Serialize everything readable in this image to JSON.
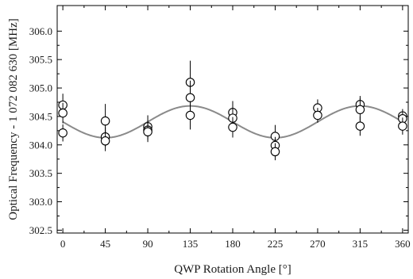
{
  "chart_data": {
    "type": "scatter",
    "xlabel": "QWP Rotation Angle [°]",
    "ylabel": "Optical Frequency - 1 072 082 630 [MHz]",
    "xlim": [
      -6,
      366
    ],
    "ylim": [
      302.45,
      306.45
    ],
    "xticks": [
      0,
      45,
      90,
      135,
      180,
      225,
      270,
      315,
      360
    ],
    "yticks": [
      302.5,
      303.0,
      303.5,
      304.0,
      304.5,
      305.0,
      305.5,
      306.0
    ],
    "ytick_labels": [
      "302.5",
      "303.0",
      "303.5",
      "304.0",
      "304.5",
      "305.0",
      "305.5",
      "306.0"
    ],
    "xtick_labels": [
      "0",
      "45",
      "90",
      "135",
      "180",
      "225",
      "270",
      "315",
      "360"
    ],
    "grid": false,
    "series": [
      {
        "type": "scatter",
        "marker": "open-circle",
        "color": "#000000",
        "points": [
          {
            "x": 0,
            "y": 304.7,
            "err": 0.2
          },
          {
            "x": 0,
            "y": 304.56,
            "err": 0.18
          },
          {
            "x": 0,
            "y": 304.21,
            "err": 0.15
          },
          {
            "x": 45,
            "y": 304.42,
            "err": 0.3
          },
          {
            "x": 45,
            "y": 304.14,
            "err": 0.17
          },
          {
            "x": 45,
            "y": 304.07,
            "err": 0.18
          },
          {
            "x": 90,
            "y": 304.32,
            "err": 0.2
          },
          {
            "x": 90,
            "y": 304.26,
            "err": 0.17
          },
          {
            "x": 90,
            "y": 304.23,
            "err": 0.18
          },
          {
            "x": 135,
            "y": 305.1,
            "err": 0.38
          },
          {
            "x": 135,
            "y": 304.83,
            "err": 0.3
          },
          {
            "x": 135,
            "y": 304.52,
            "err": 0.25
          },
          {
            "x": 180,
            "y": 304.57,
            "err": 0.2
          },
          {
            "x": 180,
            "y": 304.47,
            "err": 0.22
          },
          {
            "x": 180,
            "y": 304.31,
            "err": 0.18
          },
          {
            "x": 225,
            "y": 304.15,
            "err": 0.2
          },
          {
            "x": 225,
            "y": 303.99,
            "err": 0.15
          },
          {
            "x": 225,
            "y": 303.88,
            "err": 0.15
          },
          {
            "x": 270,
            "y": 304.65,
            "err": 0.15
          },
          {
            "x": 270,
            "y": 304.52,
            "err": 0.13
          },
          {
            "x": 315,
            "y": 304.71,
            "err": 0.15
          },
          {
            "x": 315,
            "y": 304.62,
            "err": 0.2
          },
          {
            "x": 315,
            "y": 304.33,
            "err": 0.17
          },
          {
            "x": 360,
            "y": 304.51,
            "err": 0.12
          },
          {
            "x": 360,
            "y": 304.46,
            "err": 0.12
          },
          {
            "x": 360,
            "y": 304.33,
            "err": 0.15
          }
        ]
      },
      {
        "type": "line",
        "color": "#8a8a8a",
        "fit": {
          "offset": 304.405,
          "amplitude": 0.28,
          "period": 180,
          "trough_at": 45
        }
      }
    ]
  }
}
